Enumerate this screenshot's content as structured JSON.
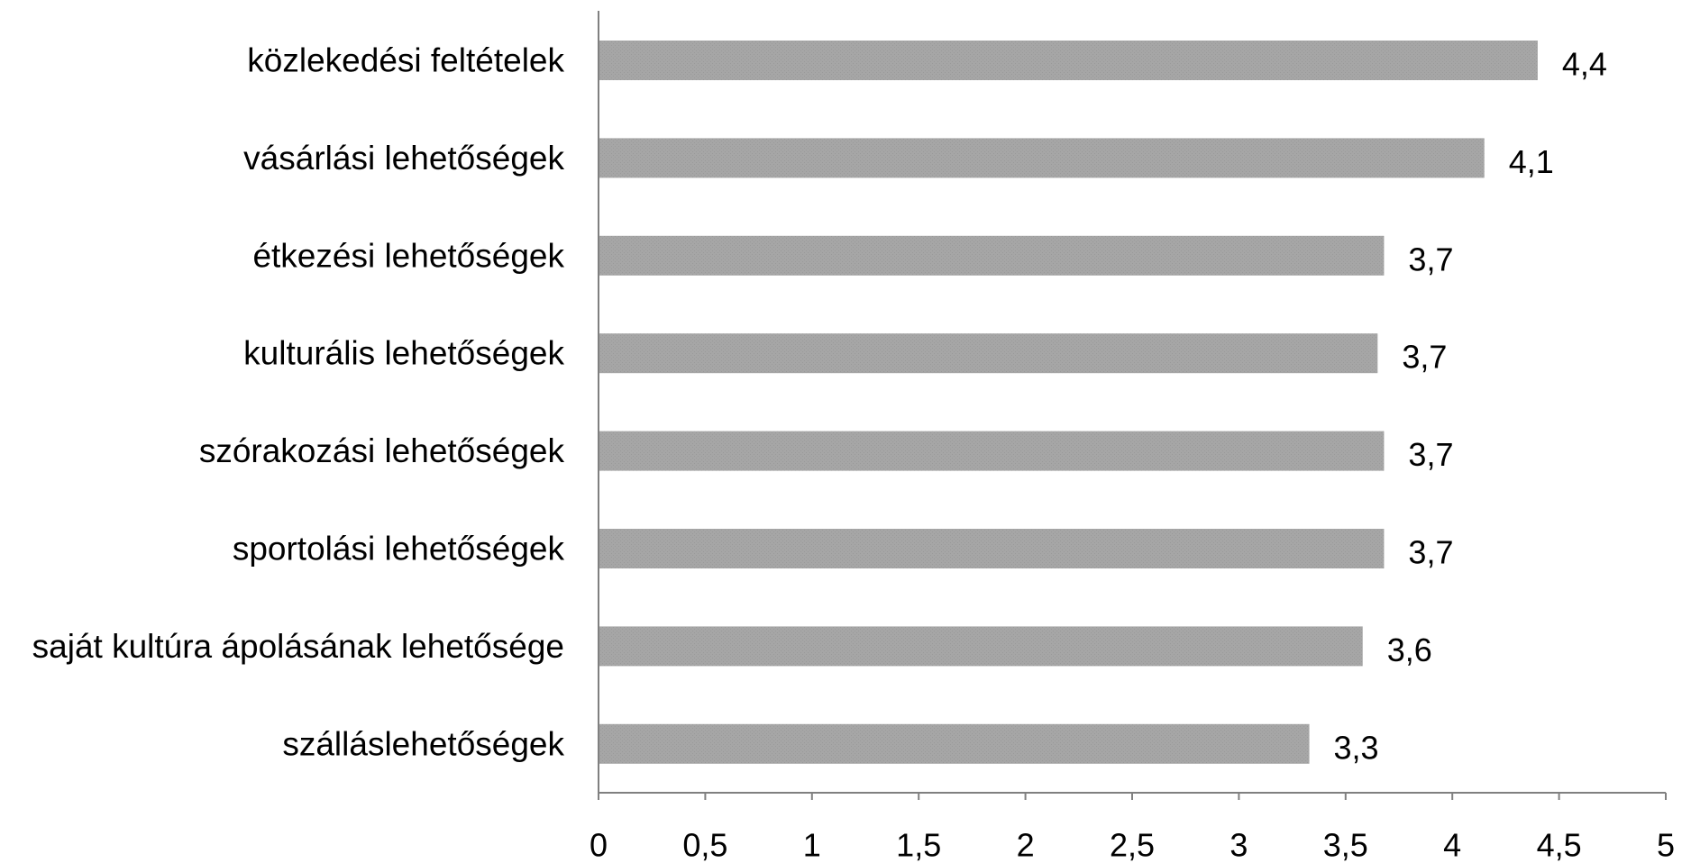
{
  "chart_data": {
    "type": "bar",
    "orientation": "horizontal",
    "categories": [
      "közlekedési feltételek",
      "vásárlási lehetőségek",
      "étkezési lehetőségek",
      "kulturális lehetőségek",
      "szórakozási lehetőségek",
      "sportolási lehetőségek",
      "saját kultúra ápolásának lehetősége",
      "szálláslehetőségek"
    ],
    "values": [
      4.4,
      4.15,
      3.68,
      3.65,
      3.68,
      3.68,
      3.58,
      3.33
    ],
    "data_labels": [
      "4,4",
      "4,1",
      "3,7",
      "3,7",
      "3,7",
      "3,7",
      "3,6",
      "3,3"
    ],
    "x_ticks": [
      0,
      0.5,
      1,
      1.5,
      2,
      2.5,
      3,
      3.5,
      4,
      4.5,
      5
    ],
    "x_tick_labels": [
      "0",
      "0,5",
      "1",
      "1,5",
      "2",
      "2,5",
      "3",
      "3,5",
      "4",
      "4,5",
      "5"
    ],
    "xlim": [
      0,
      5
    ],
    "title": "",
    "xlabel": "",
    "ylabel": "",
    "grid": false,
    "legend": "none",
    "bar_color": "#a6a6a6",
    "axis_color": "#808080"
  }
}
